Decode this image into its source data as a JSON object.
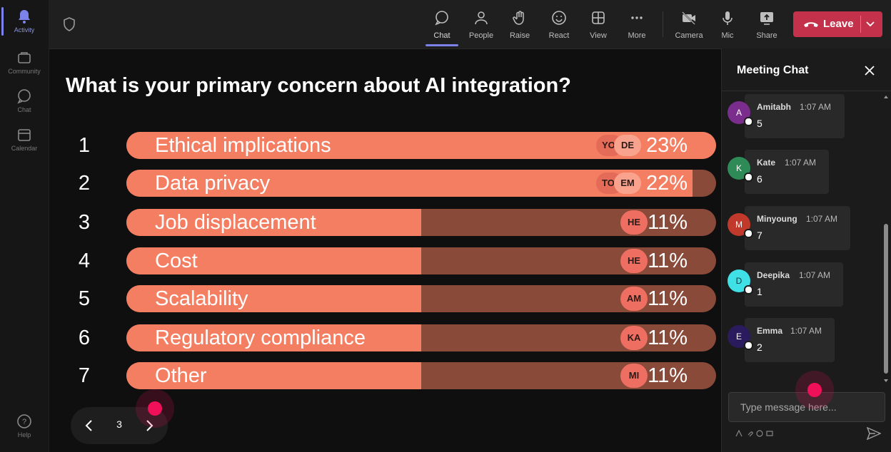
{
  "rail": {
    "items": [
      {
        "label": "Activity",
        "icon": "bell-icon",
        "active": true
      },
      {
        "label": "Community",
        "icon": "community-icon"
      },
      {
        "label": "Chat",
        "icon": "chat-icon"
      },
      {
        "label": "Calendar",
        "icon": "calendar-icon"
      }
    ],
    "help_label": "Help"
  },
  "toolbar": {
    "buttons": [
      {
        "label": "Chat",
        "icon": "chat-icon",
        "active": true
      },
      {
        "label": "People",
        "icon": "people-icon"
      },
      {
        "label": "Raise",
        "icon": "raise-hand-icon"
      },
      {
        "label": "React",
        "icon": "react-smiley-icon"
      },
      {
        "label": "View",
        "icon": "view-grid-icon"
      },
      {
        "label": "More",
        "icon": "more-dots-icon"
      },
      {
        "label": "Camera",
        "icon": "camera-off-icon"
      },
      {
        "label": "Mic",
        "icon": "mic-icon"
      },
      {
        "label": "Share",
        "icon": "share-icon"
      }
    ],
    "leave_label": "Leave",
    "leave_color": "#c4314b"
  },
  "poll": {
    "question": "What is your primary concern about AI integration?",
    "options": [
      {
        "num": "1",
        "label": "Ethical implications",
        "percent": "23%",
        "fill": 1.0,
        "chips": [
          "YO",
          "DE"
        ]
      },
      {
        "num": "2",
        "label": "Data privacy",
        "percent": "22%",
        "fill": 0.96,
        "chips": [
          "TO",
          "EM"
        ]
      },
      {
        "num": "3",
        "label": "Job displacement",
        "percent": "11%",
        "fill": 0.5,
        "chips": [
          "HE"
        ]
      },
      {
        "num": "4",
        "label": "Cost",
        "percent": "11%",
        "fill": 0.5,
        "chips": [
          "HE"
        ]
      },
      {
        "num": "5",
        "label": "Scalability",
        "percent": "11%",
        "fill": 0.5,
        "chips": [
          "AM"
        ]
      },
      {
        "num": "6",
        "label": "Regulatory compliance",
        "percent": "11%",
        "fill": 0.5,
        "chips": [
          "KA"
        ]
      },
      {
        "num": "7",
        "label": "Other",
        "percent": "11%",
        "fill": 0.5,
        "chips": [
          "MI"
        ]
      }
    ],
    "bar_color": "#f47e62",
    "track_color": "#8a4a3a"
  },
  "pager": {
    "page": "3"
  },
  "chat": {
    "title": "Meeting Chat",
    "messages": [
      {
        "initial": "A",
        "name": "Amitabh",
        "time": "1:07 AM",
        "text": "5",
        "avatar_color": "#7b2d8e"
      },
      {
        "initial": "K",
        "name": "Kate",
        "time": "1:07 AM",
        "text": "6",
        "avatar_color": "#2e8b57"
      },
      {
        "initial": "M",
        "name": "Minyoung",
        "time": "1:07 AM",
        "text": "7",
        "avatar_color": "#c0392b"
      },
      {
        "initial": "D",
        "name": "Deepika",
        "time": "1:07 AM",
        "text": "1",
        "avatar_color": "#3fe0e6"
      },
      {
        "initial": "E",
        "name": "Emma",
        "time": "1:07 AM",
        "text": "2",
        "avatar_color": "#2a1a5e"
      }
    ],
    "input_placeholder": "Type message here..."
  }
}
